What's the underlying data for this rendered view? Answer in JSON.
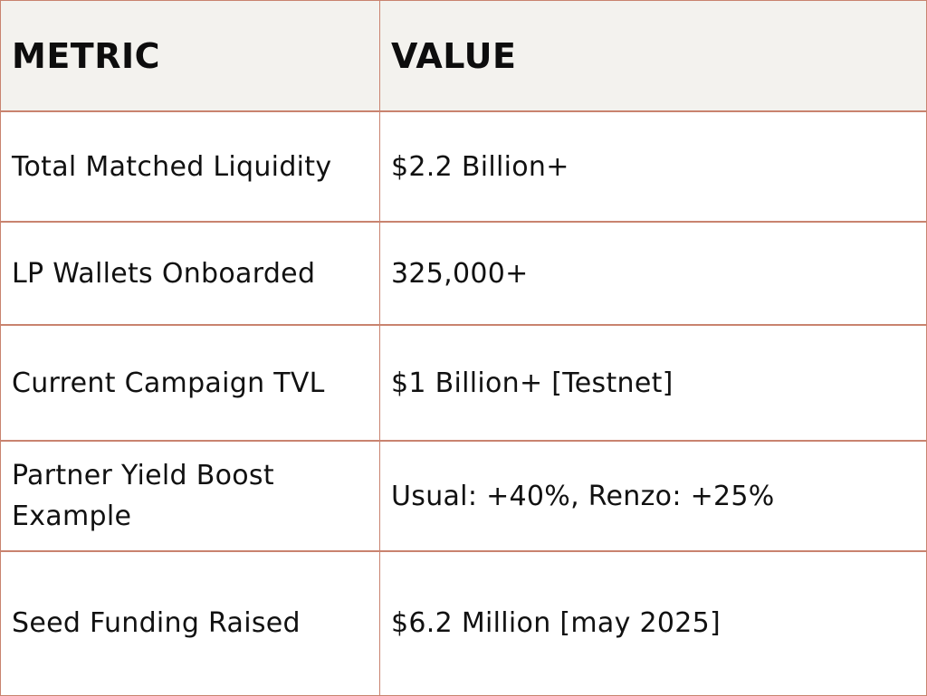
{
  "table": {
    "headers": {
      "metric": "METRIC",
      "value": "VALUE"
    },
    "rows": [
      {
        "metric": "Total Matched Liquidity",
        "value": "$2.2 Billion+"
      },
      {
        "metric": "LP Wallets Onboarded",
        "value": "325,000+"
      },
      {
        "metric": "Current Campaign TVL",
        "value": "$1 Billion+ [Testnet]"
      },
      {
        "metric": "Partner Yield Boost Example",
        "value": "Usual: +40%, Renzo: +25%"
      },
      {
        "metric": "Seed Funding Raised",
        "value": "$6.2 Million [may 2025]"
      }
    ]
  },
  "colors": {
    "border": "#c9836f",
    "header_background": "#f3f2ee",
    "text": "#111111"
  }
}
